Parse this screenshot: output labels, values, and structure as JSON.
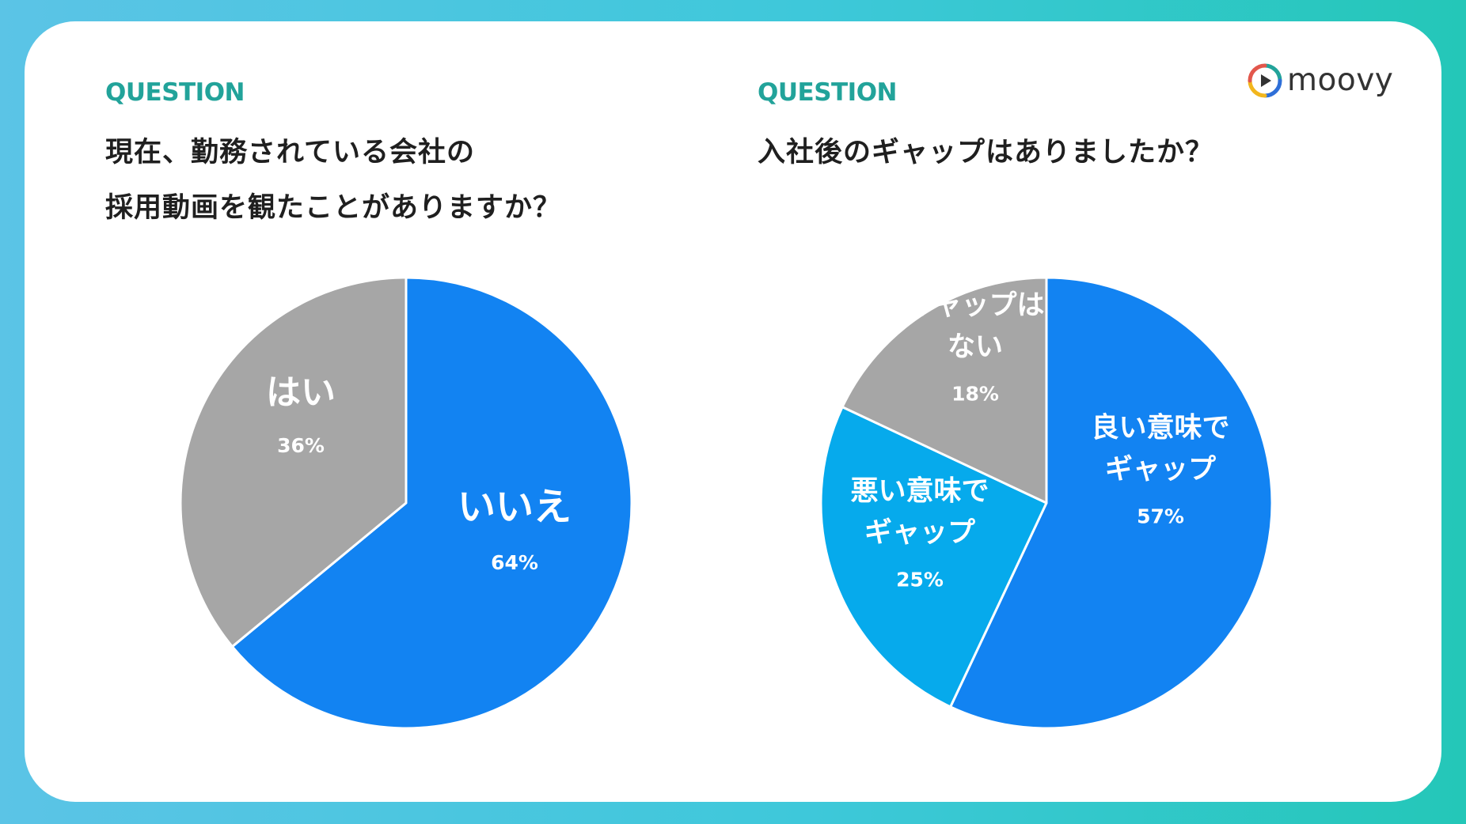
{
  "brand": {
    "name": "moovy"
  },
  "panels": [
    {
      "question_label": "QUESTION",
      "title_lines": [
        "現在、勤務されている会社の",
        "採用動画を観たことがありますか？"
      ]
    },
    {
      "question_label": "QUESTION",
      "title_lines": [
        "入社後のギャップはありましたか？"
      ]
    }
  ],
  "chart_data": [
    {
      "type": "pie",
      "slices": [
        {
          "label_lines": [
            "いいえ"
          ],
          "percent_label": "64%",
          "value": 64,
          "color": "#1283f2"
        },
        {
          "label_lines": [
            "はい"
          ],
          "percent_label": "36%",
          "value": 36,
          "color": "#a6a6a6"
        }
      ]
    },
    {
      "type": "pie",
      "slices": [
        {
          "label_lines": [
            "良い意味で",
            "ギャップ"
          ],
          "percent_label": "57%",
          "value": 57,
          "color": "#1283f2"
        },
        {
          "label_lines": [
            "悪い意味で",
            "ギャップ"
          ],
          "percent_label": "25%",
          "value": 25,
          "color": "#06aaec"
        },
        {
          "label_lines": [
            "ギャップは",
            "ない"
          ],
          "percent_label": "18%",
          "value": 18,
          "color": "#a6a6a6"
        }
      ]
    }
  ]
}
